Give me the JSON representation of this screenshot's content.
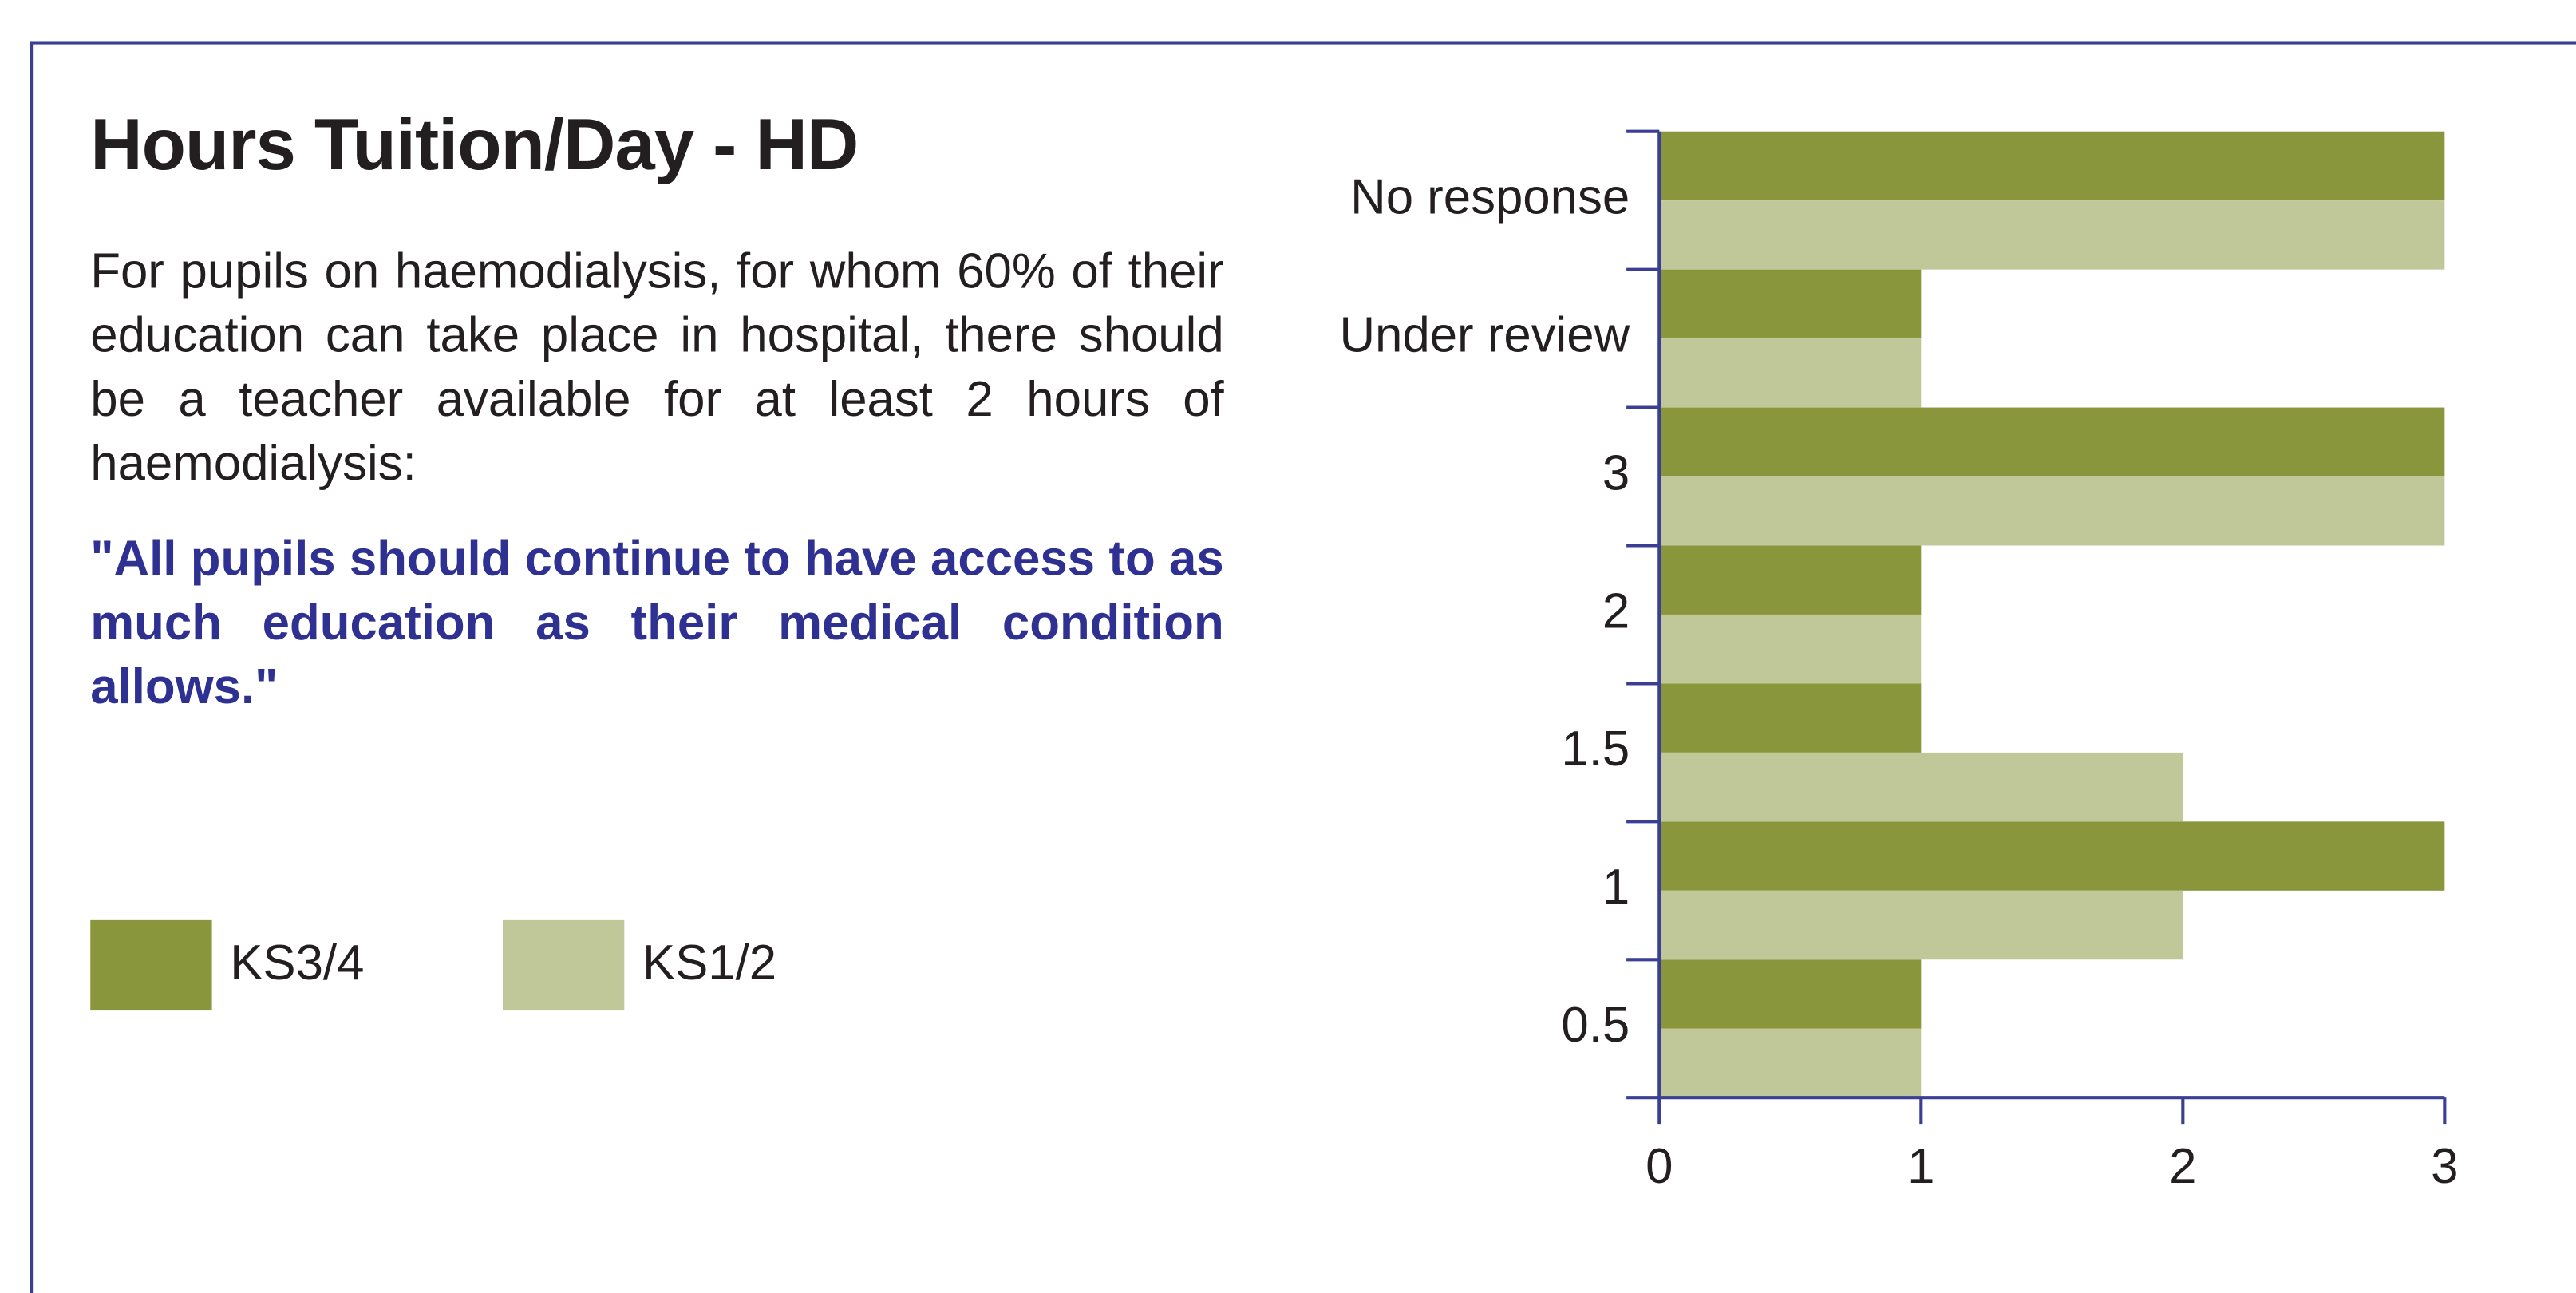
{
  "chart_data": {
    "type": "barh",
    "title": "Hours Tuition/Day - HD",
    "description": "For pupils on haemodialysis, for whom 60% of their education can take place in hospital, there should be a teacher available for at least 2 hours of haemodialysis:",
    "quote": "\"All pupils should continue to  have access to as much education as their medical condition allows.\"",
    "categories": [
      "0.5",
      "1",
      "1.5",
      "2",
      "3",
      "Under review",
      "No response"
    ],
    "series": [
      {
        "name": "KS3/4",
        "color": "#8a963c",
        "values": [
          1,
          3,
          1,
          1,
          3,
          1,
          3
        ]
      },
      {
        "name": "KS1/2",
        "color": "#c0c899",
        "values": [
          1,
          2,
          2,
          1,
          3,
          1,
          3
        ]
      }
    ],
    "xlim": [
      0,
      3
    ],
    "xticks": [
      0,
      1,
      2,
      3
    ]
  }
}
